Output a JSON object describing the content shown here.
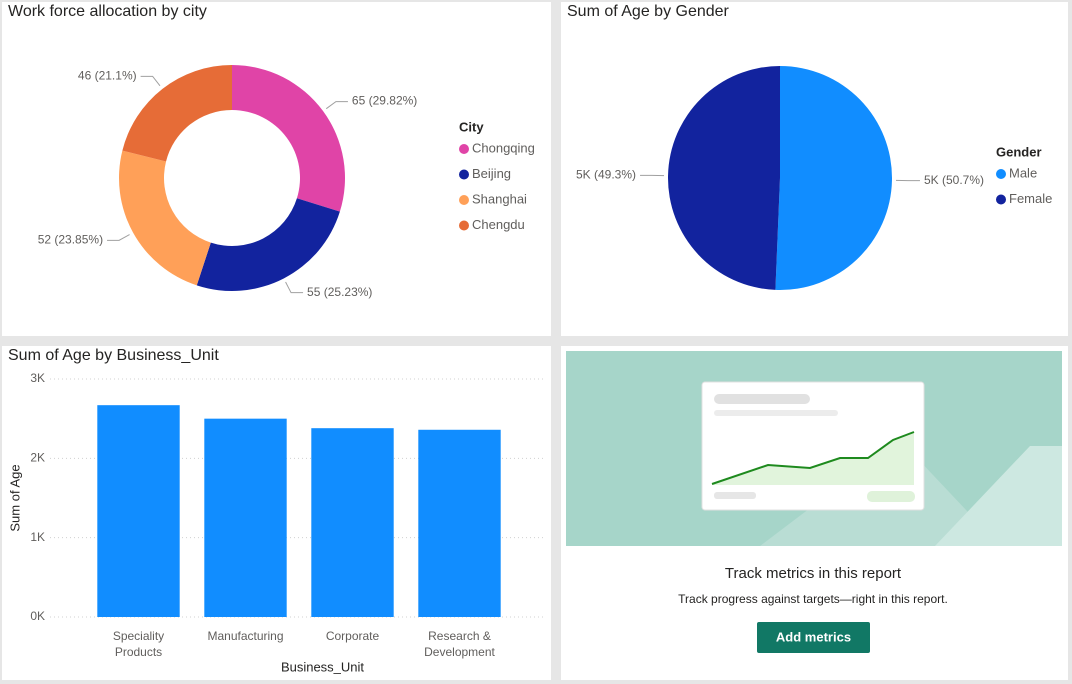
{
  "chart_data": [
    {
      "type": "donut",
      "title": "Work force allocation by city",
      "legend_title": "City",
      "categories": [
        "Chongqing",
        "Beijing",
        "Shanghai",
        "Chengdu"
      ],
      "values": [
        65,
        55,
        52,
        46
      ],
      "value_labels": [
        "65 (29.82%)",
        "55 (25.23%)",
        "52 (23.85%)",
        "46 (21.1%)"
      ],
      "colors": [
        "#e044a7",
        "#12239e",
        "#ffa058",
        "#e66c37"
      ],
      "legend": "right"
    },
    {
      "type": "pie",
      "title": "Sum of Age by Gender",
      "legend_title": "Gender",
      "categories": [
        "Male",
        "Female"
      ],
      "values": [
        5020,
        4890
      ],
      "value_labels": [
        "5K (50.7%)",
        "5K (49.3%)"
      ],
      "colors": [
        "#118dff",
        "#12239e"
      ],
      "legend": "right"
    },
    {
      "type": "bar",
      "title": "Sum of Age by Business_Unit",
      "x_label": "Business_Unit",
      "y_label": "Sum of Age",
      "categories": [
        "Speciality Products",
        "Manufacturing",
        "Corporate",
        "Research & Development"
      ],
      "values": [
        2670,
        2500,
        2380,
        2360
      ],
      "color": "#118dff",
      "ylim": [
        0,
        3000
      ],
      "yticks": [
        {
          "value": 0,
          "label": "0K"
        },
        {
          "value": 1000,
          "label": "1K"
        },
        {
          "value": 2000,
          "label": "2K"
        },
        {
          "value": 3000,
          "label": "3K"
        }
      ],
      "grid": true
    }
  ],
  "card": {
    "title": "Track metrics in this report",
    "text": "Track progress against targets—right in this report.",
    "button": "Add metrics"
  }
}
